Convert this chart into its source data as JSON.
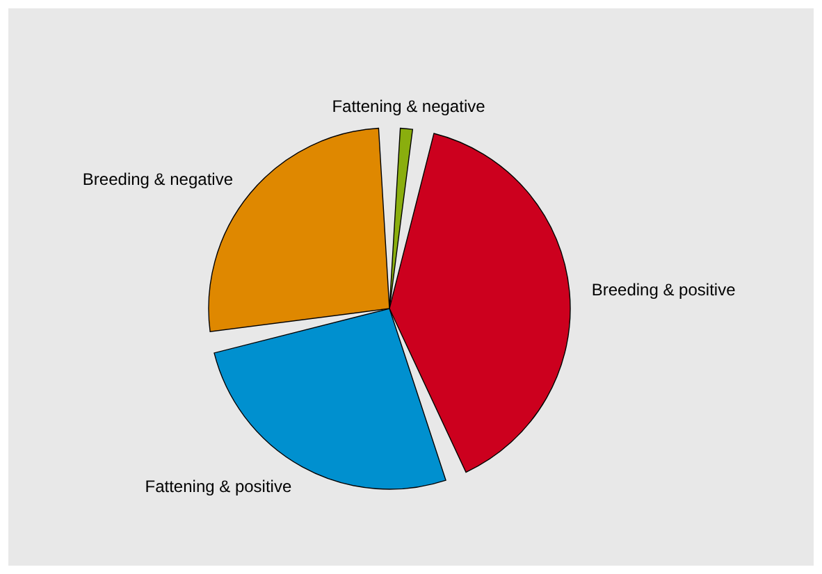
{
  "chart_data": {
    "type": "pie",
    "categories": [
      "Fattening & negative",
      "Breeding & positive",
      "Fattening & positive",
      "Breeding & negative"
    ],
    "values": [
      3,
      41,
      28,
      28
    ],
    "colors": [
      "#8aae0e",
      "#cc001e",
      "#0090cf",
      "#df8800"
    ]
  }
}
